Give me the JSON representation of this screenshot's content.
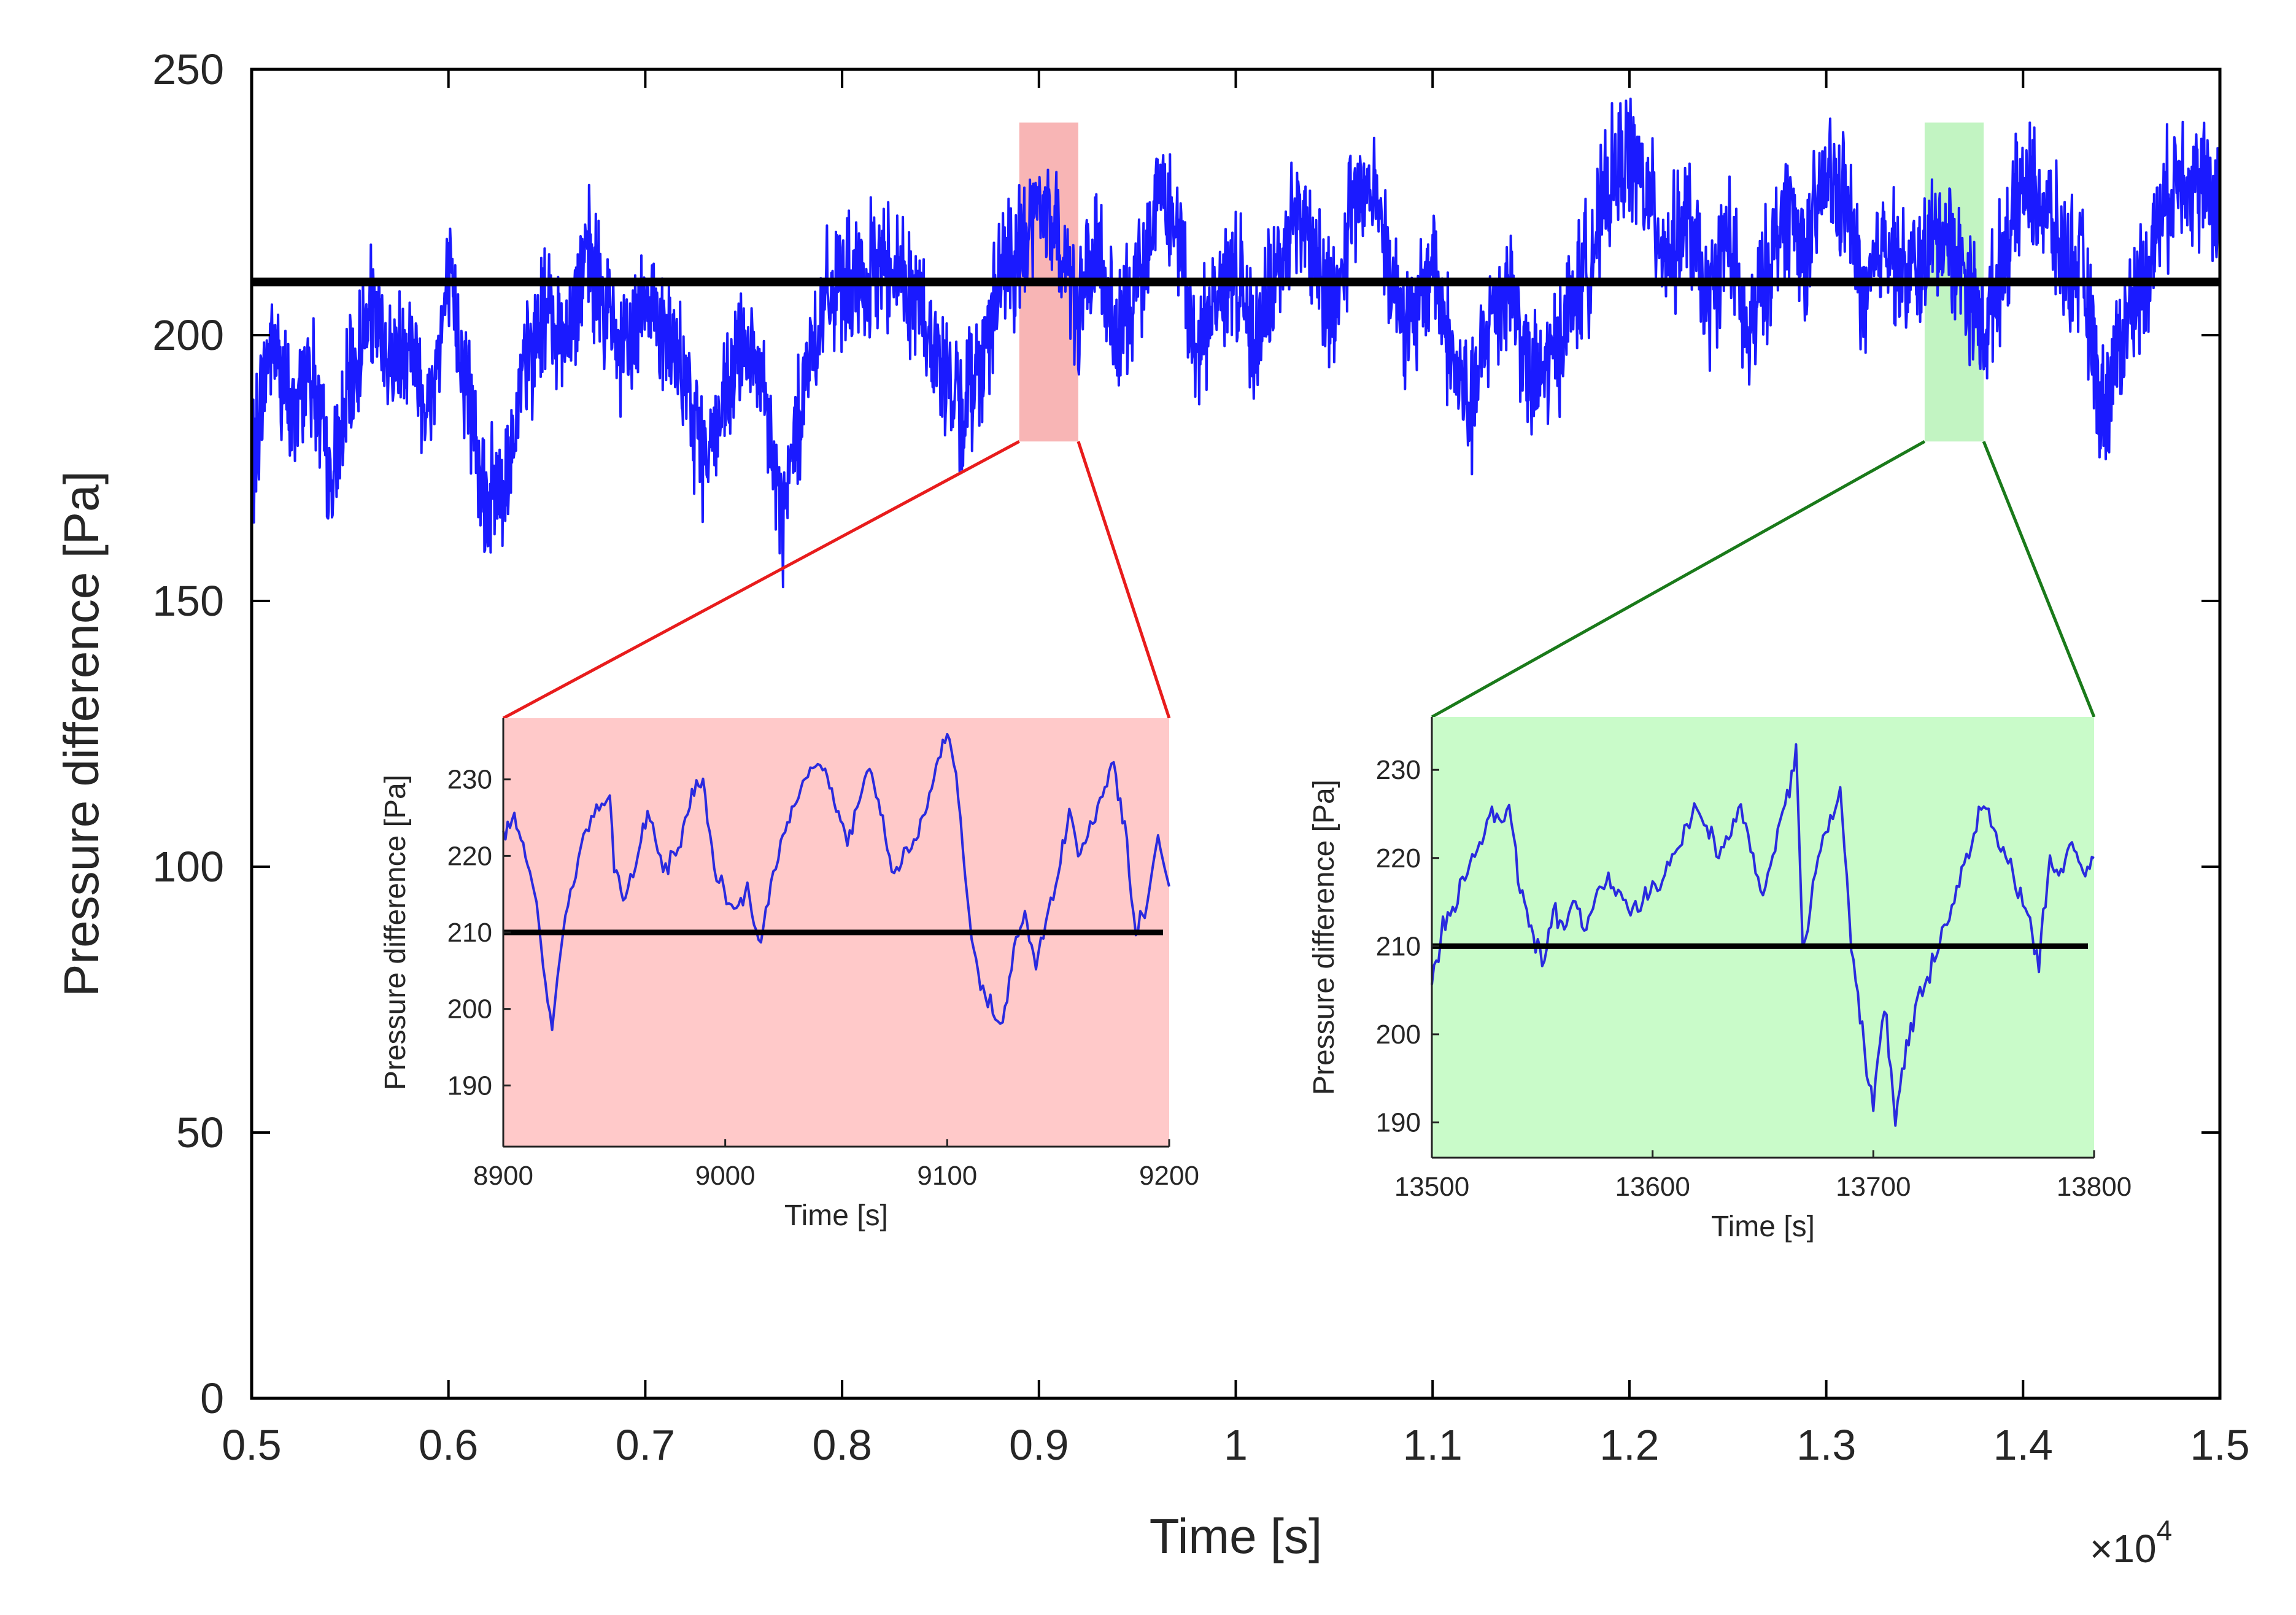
{
  "chart_data": [
    {
      "type": "line",
      "xlabel": "Time [s]",
      "ylabel": "Pressure difference [Pa]",
      "xlim": [
        5000,
        15000
      ],
      "ylim": [
        0,
        250
      ],
      "x_ticks": [
        5000,
        6000,
        7000,
        8000,
        9000,
        10000,
        11000,
        12000,
        13000,
        14000,
        15000
      ],
      "x_tick_labels": [
        "0.5",
        "0.6",
        "0.7",
        "0.8",
        "0.9",
        "1",
        "1.1",
        "1.2",
        "1.3",
        "1.4",
        "1.5"
      ],
      "x_multiplier_base": "×10",
      "x_multiplier_exp": "4",
      "y_ticks": [
        0,
        50,
        100,
        150,
        200,
        250
      ],
      "y_tick_labels": [
        "0",
        "50",
        "100",
        "150",
        "200",
        "250"
      ],
      "grid": false,
      "mean_line": 210,
      "highlighted_windows": [
        {
          "x": [
            8900,
            9200
          ],
          "y": [
            180,
            240
          ],
          "color": "#f7a8a8"
        },
        {
          "x": [
            13500,
            13800
          ],
          "y": [
            180,
            240
          ],
          "color": "#b7f2b7"
        }
      ],
      "series": [
        {
          "color": "#1a1aff",
          "x": [
            5000,
            5100,
            5200,
            5300,
            5400,
            5500,
            5600,
            5700,
            5800,
            5900,
            6000,
            6100,
            6200,
            6300,
            6400,
            6500,
            6600,
            6700,
            6800,
            6900,
            7000,
            7100,
            7200,
            7300,
            7400,
            7500,
            7600,
            7700,
            7800,
            7900,
            8000,
            8100,
            8200,
            8300,
            8400,
            8500,
            8600,
            8700,
            8800,
            8900,
            9000,
            9100,
            9200,
            9300,
            9400,
            9500,
            9600,
            9700,
            9800,
            9900,
            10000,
            10100,
            10200,
            10300,
            10400,
            10500,
            10600,
            10700,
            10800,
            10900,
            11000,
            11100,
            11200,
            11300,
            11400,
            11500,
            11600,
            11700,
            11800,
            11900,
            12000,
            12100,
            12200,
            12300,
            12400,
            12500,
            12600,
            12700,
            12800,
            12900,
            13000,
            13100,
            13200,
            13300,
            13400,
            13500,
            13600,
            13700,
            13800,
            13900,
            14000,
            14100,
            14200,
            14300,
            14400,
            14500,
            14600,
            14700,
            14800,
            14900,
            15000
          ],
          "values": [
            175,
            200,
            185,
            195,
            170,
            190,
            205,
            195,
            200,
            185,
            210,
            190,
            168,
            175,
            195,
            205,
            200,
            215,
            205,
            195,
            210,
            200,
            190,
            178,
            185,
            200,
            188,
            165,
            190,
            205,
            210,
            208,
            215,
            212,
            205,
            195,
            185,
            195,
            210,
            215,
            225,
            218,
            205,
            215,
            198,
            210,
            228,
            220,
            195,
            208,
            212,
            200,
            210,
            225,
            215,
            205,
            225,
            230,
            210,
            200,
            215,
            195,
            185,
            205,
            210,
            190,
            195,
            205,
            215,
            228,
            235,
            225,
            215,
            222,
            205,
            220,
            198,
            212,
            225,
            215,
            230,
            225,
            205,
            220,
            210,
            215,
            220,
            212,
            200,
            215,
            228,
            225,
            215,
            212,
            185,
            200,
            210,
            222,
            232,
            228,
            225
          ]
        }
      ]
    },
    {
      "type": "line",
      "xlabel": "Time [s]",
      "ylabel": "Pressure difference [Pa]",
      "xlim": [
        8900,
        9200
      ],
      "ylim": [
        182,
        238
      ],
      "x_ticks": [
        8900,
        9000,
        9100,
        9200
      ],
      "x_tick_labels": [
        "8900",
        "9000",
        "9100",
        "9200"
      ],
      "y_ticks": [
        190,
        200,
        210,
        220,
        230
      ],
      "y_tick_labels": [
        "190",
        "200",
        "210",
        "220",
        "230"
      ],
      "grid": false,
      "mean_line": 210,
      "background": "#ffc9c9",
      "series": [
        {
          "color": "#2a2adf",
          "x": [
            8900,
            8905,
            8910,
            8915,
            8918,
            8922,
            8928,
            8935,
            8942,
            8948,
            8950,
            8955,
            8962,
            8965,
            8972,
            8980,
            8985,
            8990,
            8995,
            9005,
            9010,
            9015,
            9025,
            9030,
            9035,
            9045,
            9050,
            9055,
            9065,
            9070,
            9075,
            9085,
            9090,
            9095,
            9100,
            9105,
            9110,
            9115,
            9125,
            9130,
            9135,
            9140,
            9150,
            9155,
            9160,
            9170,
            9175,
            9180,
            9185,
            9190,
            9195,
            9200
          ],
          "values": [
            222,
            226,
            220,
            214,
            205,
            198,
            212,
            221,
            226,
            228,
            218,
            214,
            222,
            226,
            218,
            222,
            228,
            230,
            218,
            212,
            216,
            208,
            222,
            226,
            230,
            232,
            226,
            222,
            232,
            226,
            218,
            222,
            226,
            232,
            236,
            228,
            212,
            202,
            198,
            208,
            212,
            206,
            218,
            226,
            220,
            228,
            232,
            224,
            210,
            214,
            222,
            216
          ]
        },
        {
          "name": "",
          "color": "#000000",
          "x": [
            8900,
            9200
          ],
          "values": [
            210,
            210
          ]
        }
      ]
    },
    {
      "type": "line",
      "xlabel": "Time [s]",
      "ylabel": "Pressure difference [Pa]",
      "xlim": [
        13500,
        13800
      ],
      "ylim": [
        186,
        236
      ],
      "x_ticks": [
        13500,
        13600,
        13700,
        13800
      ],
      "x_tick_labels": [
        "13500",
        "13600",
        "13700",
        "13800"
      ],
      "y_ticks": [
        190,
        200,
        210,
        220,
        230
      ],
      "y_tick_labels": [
        "190",
        "200",
        "210",
        "220",
        "230"
      ],
      "grid": false,
      "mean_line": 210,
      "background": "#c9fbc9",
      "series": [
        {
          "color": "#2a2adf",
          "x": [
            13500,
            13505,
            13515,
            13525,
            13535,
            13540,
            13545,
            13550,
            13555,
            13560,
            13565,
            13570,
            13575,
            13580,
            13590,
            13600,
            13610,
            13620,
            13630,
            13640,
            13650,
            13660,
            13665,
            13668,
            13675,
            13685,
            13690,
            13695,
            13700,
            13705,
            13710,
            13715,
            13720,
            13730,
            13740,
            13750,
            13760,
            13770,
            13775,
            13780,
            13785,
            13790,
            13795,
            13800
          ],
          "values": [
            206,
            212,
            218,
            224,
            226,
            216,
            212,
            208,
            214,
            212,
            215,
            212,
            216,
            218,
            214,
            216,
            220,
            226,
            220,
            226,
            215,
            226,
            232,
            210,
            220,
            228,
            210,
            200,
            192,
            204,
            190,
            198,
            204,
            210,
            218,
            226,
            220,
            214,
            208,
            220,
            218,
            222,
            218,
            220
          ]
        },
        {
          "name": "",
          "color": "#000000",
          "x": [
            13500,
            13800
          ],
          "values": [
            210,
            210
          ]
        }
      ]
    }
  ]
}
